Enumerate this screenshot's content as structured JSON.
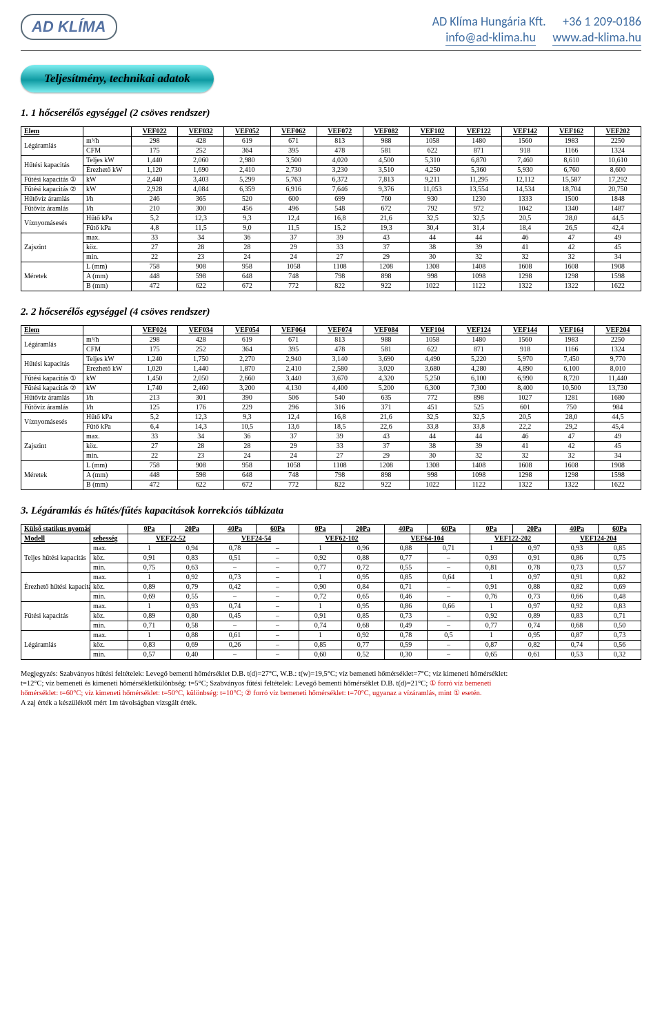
{
  "header": {
    "logo_text": "AD KLÍMA",
    "company": "AD Klíma Hungária Kft.",
    "email": "info@ad-klima.hu",
    "phone": "+36 1 209-0186",
    "web": "www.ad-klima.hu"
  },
  "colors": {
    "header_text": "#3b6aa0",
    "pill_gradient_top": "#7feef0",
    "pill_gradient_mid": "#0e9aa2",
    "red": "#c00000"
  },
  "pill_title": "Teljesítmény, technikai adatok",
  "sections": {
    "s1": "1.  1 hőcserélős egységgel (2 csöves rendszer)",
    "s2": "2.  2 hőcserélős egységgel (4 csöves rendszer)",
    "s3": "3.  Légáramlás és hűtés/fűtés kapacitások korrekciós táblázata"
  },
  "table1": {
    "headers": [
      "Elem",
      "",
      "VEF022",
      "VEF032",
      "VEF052",
      "VEF062",
      "VEF072",
      "VEF082",
      "VEF102",
      "VEF122",
      "VEF142",
      "VEF162",
      "VEF202"
    ],
    "rows": [
      {
        "lbl": "Légáramlás",
        "sub": "m³/h",
        "v": [
          "298",
          "428",
          "619",
          "671",
          "813",
          "988",
          "1058",
          "1480",
          "1560",
          "1983",
          "2250"
        ]
      },
      {
        "lbl": "",
        "sub": "CFM",
        "v": [
          "175",
          "252",
          "364",
          "395",
          "478",
          "581",
          "622",
          "871",
          "918",
          "1166",
          "1324"
        ]
      },
      {
        "lbl": "Hűtési kapacitás",
        "sub": "Teljes   kW",
        "v": [
          "1,440",
          "2,060",
          "2,980",
          "3,500",
          "4,020",
          "4,500",
          "5,310",
          "6,870",
          "7,460",
          "8,610",
          "10,610"
        ]
      },
      {
        "lbl": "",
        "sub": "Érezhető kW",
        "v": [
          "1,120",
          "1,690",
          "2,410",
          "2,730",
          "3,230",
          "3,510",
          "4,250",
          "5,360",
          "5,930",
          "6,760",
          "8,600"
        ]
      },
      {
        "lbl": "Fűtési kapacitás ①",
        "sub": "kW",
        "v": [
          "2,440",
          "3,403",
          "5,299",
          "5,763",
          "6,372",
          "7,813",
          "9,211",
          "11,295",
          "12,112",
          "15,587",
          "17,292"
        ]
      },
      {
        "lbl": "Fűtési kapacitás ②",
        "sub": "kW",
        "v": [
          "2,928",
          "4,084",
          "6,359",
          "6,916",
          "7,646",
          "9,376",
          "11,053",
          "13,554",
          "14,534",
          "18,704",
          "20,750"
        ]
      },
      {
        "lbl": "Hűtővíz áramlás",
        "sub": "l/h",
        "v": [
          "246",
          "365",
          "520",
          "600",
          "699",
          "760",
          "930",
          "1230",
          "1333",
          "1500",
          "1848"
        ]
      },
      {
        "lbl": "Fűtővíz áramlás",
        "sub": "l/h",
        "v": [
          "210",
          "300",
          "456",
          "496",
          "548",
          "672",
          "792",
          "972",
          "1042",
          "1340",
          "1487"
        ]
      },
      {
        "lbl": "Víznyomásesés",
        "sub": "Hűtő   kPa",
        "v": [
          "5,2",
          "12,3",
          "9,3",
          "12,4",
          "16,8",
          "21,6",
          "32,5",
          "32,5",
          "20,5",
          "28,0",
          "44,5"
        ]
      },
      {
        "lbl": "",
        "sub": "Fűtő   kPa",
        "v": [
          "4,8",
          "11,5",
          "9,0",
          "11,5",
          "15,2",
          "19,3",
          "30,4",
          "31,4",
          "18,4",
          "26,5",
          "42,4"
        ]
      },
      {
        "lbl": "Zajszint",
        "sub": "max.",
        "v": [
          "33",
          "34",
          "36",
          "37",
          "39",
          "43",
          "44",
          "44",
          "46",
          "47",
          "49"
        ]
      },
      {
        "lbl": "",
        "sub": "köz.",
        "v": [
          "27",
          "28",
          "28",
          "29",
          "33",
          "37",
          "38",
          "39",
          "41",
          "42",
          "45"
        ]
      },
      {
        "lbl": "",
        "sub": "min.",
        "v": [
          "22",
          "23",
          "24",
          "24",
          "27",
          "29",
          "30",
          "32",
          "32",
          "32",
          "34"
        ]
      },
      {
        "lbl": "Méretek",
        "sub": "L (mm)",
        "v": [
          "758",
          "908",
          "958",
          "1058",
          "1108",
          "1208",
          "1308",
          "1408",
          "1608",
          "1608",
          "1908"
        ]
      },
      {
        "lbl": "",
        "sub": "A (mm)",
        "v": [
          "448",
          "598",
          "648",
          "748",
          "798",
          "898",
          "998",
          "1098",
          "1298",
          "1298",
          "1598"
        ]
      },
      {
        "lbl": "",
        "sub": "B (mm)",
        "v": [
          "472",
          "622",
          "672",
          "772",
          "822",
          "922",
          "1022",
          "1122",
          "1322",
          "1322",
          "1622"
        ]
      }
    ]
  },
  "table2": {
    "headers": [
      "Elem",
      "",
      "VEF024",
      "VEF034",
      "VEF054",
      "VEF064",
      "VEF074",
      "VEF084",
      "VEF104",
      "VEF124",
      "VEF144",
      "VEF164",
      "VEF204"
    ],
    "rows": [
      {
        "lbl": "Légáramlás",
        "sub": "m³/h",
        "v": [
          "298",
          "428",
          "619",
          "671",
          "813",
          "988",
          "1058",
          "1480",
          "1560",
          "1983",
          "2250"
        ]
      },
      {
        "lbl": "",
        "sub": "CFM",
        "v": [
          "175",
          "252",
          "364",
          "395",
          "478",
          "581",
          "622",
          "871",
          "918",
          "1166",
          "1324"
        ]
      },
      {
        "lbl": "Hűtési kapacitás",
        "sub": "Teljes   kW",
        "v": [
          "1,240",
          "1,750",
          "2,270",
          "2,940",
          "3,140",
          "3,690",
          "4,490",
          "5,220",
          "5,970",
          "7,450",
          "9,770"
        ]
      },
      {
        "lbl": "",
        "sub": "Érezhető kW",
        "v": [
          "1,020",
          "1,440",
          "1,870",
          "2,410",
          "2,580",
          "3,020",
          "3,680",
          "4,280",
          "4,890",
          "6,100",
          "8,010"
        ]
      },
      {
        "lbl": "Fűtési kapacitás ①",
        "sub": "kW",
        "v": [
          "1,450",
          "2,050",
          "2,660",
          "3,440",
          "3,670",
          "4,320",
          "5,250",
          "6,100",
          "6,990",
          "8,720",
          "11,440"
        ]
      },
      {
        "lbl": "Fűtési kapacitás ②",
        "sub": "kW",
        "v": [
          "1,740",
          "2,460",
          "3,200",
          "4,130",
          "4,400",
          "5,200",
          "6,300",
          "7,300",
          "8,400",
          "10,500",
          "13,730"
        ]
      },
      {
        "lbl": "Hűtővíz áramlás",
        "sub": "l/h",
        "v": [
          "213",
          "301",
          "390",
          "506",
          "540",
          "635",
          "772",
          "898",
          "1027",
          "1281",
          "1680"
        ]
      },
      {
        "lbl": "Fűtővíz áramlás",
        "sub": "l/h",
        "v": [
          "125",
          "176",
          "229",
          "296",
          "316",
          "371",
          "451",
          "525",
          "601",
          "750",
          "984"
        ]
      },
      {
        "lbl": "Víznyomásesés",
        "sub": "Hűtő   kPa",
        "v": [
          "5,2",
          "12,3",
          "9,3",
          "12,4",
          "16,8",
          "21,6",
          "32,5",
          "32,5",
          "20,5",
          "28,0",
          "44,5"
        ]
      },
      {
        "lbl": "",
        "sub": "Fűtő   kPa",
        "v": [
          "6,4",
          "14,3",
          "10,5",
          "13,6",
          "18,5",
          "22,6",
          "33,8",
          "33,8",
          "22,2",
          "29,2",
          "45,4"
        ]
      },
      {
        "lbl": "Zajszint",
        "sub": "max.",
        "v": [
          "33",
          "34",
          "36",
          "37",
          "39",
          "43",
          "44",
          "44",
          "46",
          "47",
          "49"
        ]
      },
      {
        "lbl": "",
        "sub": "köz.",
        "v": [
          "27",
          "28",
          "28",
          "29",
          "33",
          "37",
          "38",
          "39",
          "41",
          "42",
          "45"
        ]
      },
      {
        "lbl": "",
        "sub": "min.",
        "v": [
          "22",
          "23",
          "24",
          "24",
          "27",
          "29",
          "30",
          "32",
          "32",
          "32",
          "34"
        ]
      },
      {
        "lbl": "Méretek",
        "sub": "L (mm)",
        "v": [
          "758",
          "908",
          "958",
          "1058",
          "1108",
          "1208",
          "1308",
          "1408",
          "1608",
          "1608",
          "1908"
        ]
      },
      {
        "lbl": "",
        "sub": "A (mm)",
        "v": [
          "448",
          "598",
          "648",
          "748",
          "798",
          "898",
          "998",
          "1098",
          "1298",
          "1298",
          "1598"
        ]
      },
      {
        "lbl": "",
        "sub": "B (mm)",
        "v": [
          "472",
          "622",
          "672",
          "772",
          "822",
          "922",
          "1022",
          "1122",
          "1322",
          "1322",
          "1622"
        ]
      }
    ]
  },
  "table3": {
    "top_headers": [
      "Külső statikus nyomás",
      "",
      "0Pa",
      "20Pa",
      "40Pa",
      "60Pa",
      "0Pa",
      "20Pa",
      "40Pa",
      "60Pa",
      "0Pa",
      "20Pa",
      "40Pa",
      "60Pa"
    ],
    "model_row": [
      "Modell",
      "sebesség",
      "VEF22-52",
      "VEF24-54",
      "VEF62-102",
      "VEF64-104",
      "VEF122-202",
      "VEF124-204"
    ],
    "groups": [
      {
        "lbl": "Teljes hűtési kapacitás",
        "rows": [
          {
            "s": "max.",
            "v": [
              "1",
              "0,94",
              "0,78",
              "–",
              "1",
              "0,96",
              "0,88",
              "0,71",
              "1",
              "0,97",
              "0,93",
              "0,85"
            ]
          },
          {
            "s": "köz.",
            "v": [
              "0,91",
              "0,83",
              "0,51",
              "–",
              "0,92",
              "0,88",
              "0,77",
              "–",
              "0,93",
              "0,91",
              "0,86",
              "0,75"
            ]
          },
          {
            "s": "min.",
            "v": [
              "0,75",
              "0,63",
              "–",
              "–",
              "0,77",
              "0,72",
              "0,55",
              "–",
              "0,81",
              "0,78",
              "0,73",
              "0,57"
            ]
          }
        ]
      },
      {
        "lbl": "Érezhető hűtési kapacitás",
        "rows": [
          {
            "s": "max.",
            "v": [
              "1",
              "0,92",
              "0,73",
              "–",
              "1",
              "0,95",
              "0,85",
              "0,64",
              "1",
              "0,97",
              "0,91",
              "0,82"
            ]
          },
          {
            "s": "köz.",
            "v": [
              "0,89",
              "0,79",
              "0,42",
              "–",
              "0,90",
              "0,84",
              "0,71",
              "–",
              "0,91",
              "0,88",
              "0,82",
              "0,69"
            ]
          },
          {
            "s": "min.",
            "v": [
              "0,69",
              "0,55",
              "–",
              "–",
              "0,72",
              "0,65",
              "0,46",
              "–",
              "0,76",
              "0,73",
              "0,66",
              "0,48"
            ]
          }
        ]
      },
      {
        "lbl": "Fűtési kapacitás",
        "rows": [
          {
            "s": "max.",
            "v": [
              "1",
              "0,93",
              "0,74",
              "–",
              "1",
              "0,95",
              "0,86",
              "0,66",
              "1",
              "0,97",
              "0,92",
              "0,83"
            ]
          },
          {
            "s": "köz.",
            "v": [
              "0,89",
              "0,80",
              "0,45",
              "–",
              "0,91",
              "0,85",
              "0,73",
              "–",
              "0,92",
              "0,89",
              "0,83",
              "0,71"
            ]
          },
          {
            "s": "min.",
            "v": [
              "0,71",
              "0,58",
              "–",
              "–",
              "0,74",
              "0,68",
              "0,49",
              "–",
              "0,77",
              "0,74",
              "0,68",
              "0,50"
            ]
          }
        ]
      },
      {
        "lbl": "Légáramlás",
        "rows": [
          {
            "s": "max.",
            "v": [
              "1",
              "0,88",
              "0,61",
              "–",
              "1",
              "0,92",
              "0,78",
              "0,5",
              "1",
              "0,95",
              "0,87",
              "0,73"
            ]
          },
          {
            "s": "köz.",
            "v": [
              "0,83",
              "0,69",
              "0,26",
              "–",
              "0,85",
              "0,77",
              "0,59",
              "–",
              "0,87",
              "0,82",
              "0,74",
              "0,56"
            ]
          },
          {
            "s": "min.",
            "v": [
              "0,57",
              "0,40",
              "–",
              "–",
              "0,60",
              "0,52",
              "0,30",
              "–",
              "0,65",
              "0,61",
              "0,53",
              "0,32"
            ]
          }
        ]
      }
    ]
  },
  "footnote": {
    "l1_pre": "Megjegyzés: Szabványos hűtési feltételek: Levegő bementi hőmérséklet D.B. t(d)=27°C, W.B.: t(w)=19,5°C; víz bemeneti hőmérséklet=7°C; víz kimeneti hőmérséklet:",
    "l2_pre": "t=12°C; víz bemeneti és kimeneti hőmérsékletkülönbség: t=5°C; Szabványos fűtési feltételek: Levegő bementi hőmérséklet D.B. t(d)=21°C; ",
    "l2_red": "① forró víz bemeneti",
    "l3_red": "hőmérséklet: t=60°C; víz kimeneti hőmérséklet: t=50°C, különbség: t=10°C; ② forró víz bemeneti hőmérséklet: t=70°C, ugyanaz a vízáramlás, mint ① esetén.",
    "l4": "A zaj érték a készüléktől mért 1m távolságban vizsgált érték."
  }
}
